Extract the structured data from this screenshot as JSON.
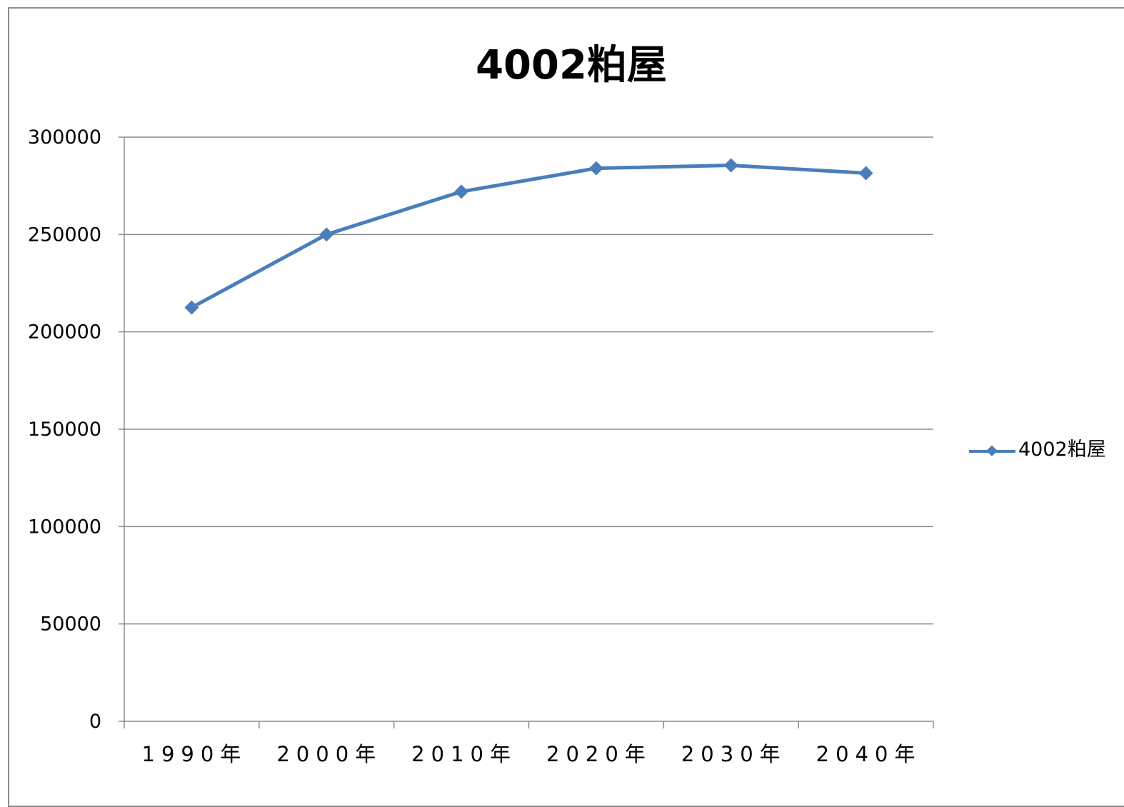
{
  "chart_data": {
    "type": "line",
    "title": "4002粕屋",
    "xlabel": "",
    "ylabel": "",
    "categories": [
      "1990年",
      "2000年",
      "2010年",
      "2020年",
      "2030年",
      "2040年"
    ],
    "series": [
      {
        "name": "4002粕屋",
        "values": [
          212500,
          250000,
          272000,
          284000,
          285500,
          281500
        ]
      }
    ],
    "ylim": [
      0,
      300000
    ],
    "yticks": [
      0,
      50000,
      100000,
      150000,
      200000,
      250000,
      300000
    ],
    "ytick_labels": [
      "0",
      "50000",
      "100000",
      "150000",
      "200000",
      "250000",
      "300000"
    ],
    "grid": true,
    "legend_position": "right",
    "marker": "diamond",
    "colors": {
      "series": "#4a7ebb",
      "grid": "#8c8c8c",
      "axis": "#8c8c8c",
      "text": "#000000"
    }
  }
}
